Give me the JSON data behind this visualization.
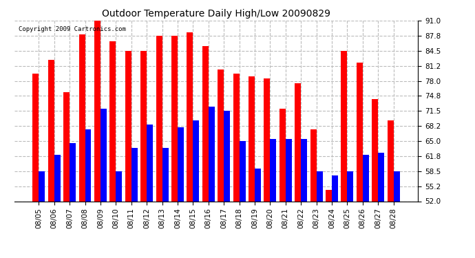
{
  "title": "Outdoor Temperature Daily High/Low 20090829",
  "copyright": "Copyright 2009 Cartronics.com",
  "dates": [
    "08/05",
    "08/06",
    "08/07",
    "08/08",
    "08/09",
    "08/10",
    "08/11",
    "08/12",
    "08/13",
    "08/14",
    "08/15",
    "08/16",
    "08/17",
    "08/18",
    "08/19",
    "08/20",
    "08/21",
    "08/22",
    "08/23",
    "08/24",
    "08/25",
    "08/26",
    "08/27",
    "08/28"
  ],
  "highs": [
    79.5,
    82.5,
    75.5,
    88.0,
    91.0,
    86.5,
    84.5,
    84.5,
    87.8,
    87.8,
    88.5,
    85.5,
    80.5,
    79.5,
    79.0,
    78.5,
    72.0,
    77.5,
    67.5,
    54.5,
    84.5,
    82.0,
    74.0,
    69.5
  ],
  "lows": [
    58.5,
    62.0,
    64.5,
    67.5,
    72.0,
    58.5,
    63.5,
    68.5,
    63.5,
    68.0,
    69.5,
    72.5,
    71.5,
    65.0,
    59.0,
    65.5,
    65.5,
    65.5,
    58.5,
    57.5,
    58.5,
    62.0,
    62.5,
    58.5
  ],
  "high_color": "#ff0000",
  "low_color": "#0000ff",
  "background_color": "#ffffff",
  "grid_color": "#bbbbbb",
  "ylim_min": 52.0,
  "ylim_max": 91.0,
  "yticks": [
    52.0,
    55.2,
    58.5,
    61.8,
    65.0,
    68.2,
    71.5,
    74.8,
    78.0,
    81.2,
    84.5,
    87.8,
    91.0
  ],
  "bar_width": 0.4,
  "fig_width": 6.9,
  "fig_height": 3.75,
  "dpi": 100
}
